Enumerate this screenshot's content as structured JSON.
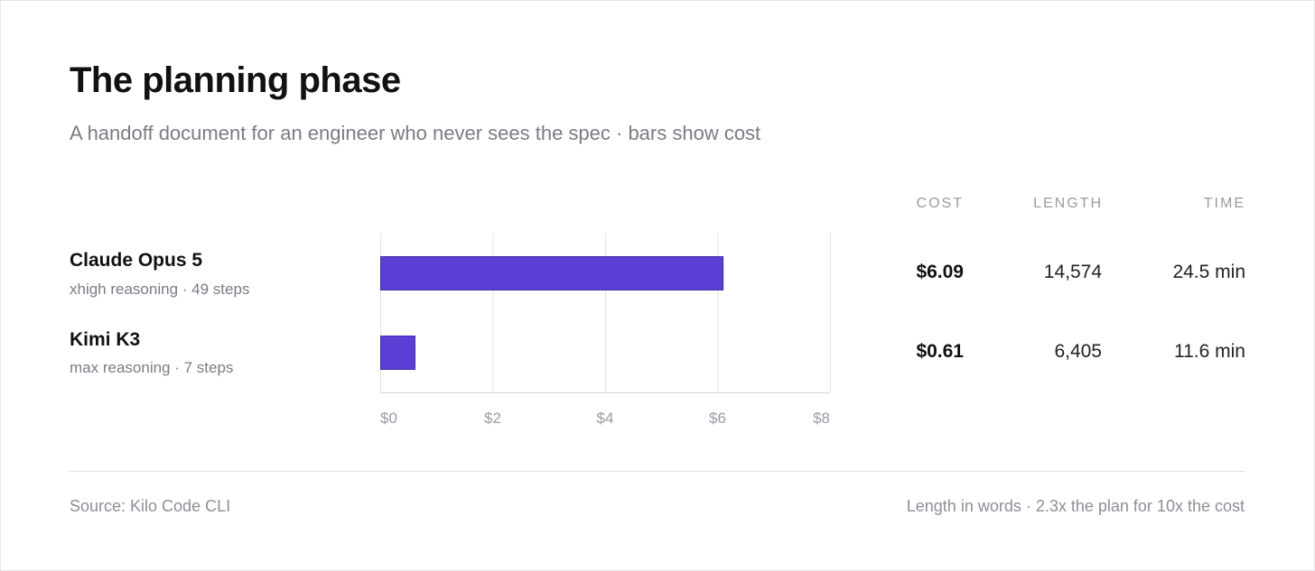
{
  "header": {
    "title": "The planning phase",
    "subtitle": "A handoff document for an engineer who never sees the spec · bars show cost"
  },
  "table": {
    "columns": [
      "COST",
      "LENGTH",
      "TIME"
    ],
    "rows": [
      {
        "model": "Claude Opus 5",
        "detail": "xhigh reasoning · 49 steps",
        "cost": "$6.09",
        "length": "14,574",
        "time": "24.5 min"
      },
      {
        "model": "Kimi K3",
        "detail": "max reasoning · 7 steps",
        "cost": "$0.61",
        "length": "6,405",
        "time": "11.6 min"
      }
    ]
  },
  "chart_data": {
    "type": "bar",
    "orientation": "horizontal",
    "categories": [
      "Claude Opus 5",
      "Kimi K3"
    ],
    "values": [
      6.09,
      0.61
    ],
    "xlim": [
      0,
      8
    ],
    "x_ticks": [
      0,
      2,
      4,
      6,
      8
    ],
    "x_tick_labels": [
      "$0",
      "$2",
      "$4",
      "$6",
      "$8"
    ],
    "grid": true,
    "bar_color": "#5b3fd4"
  },
  "footer": {
    "source": "Source: Kilo Code CLI",
    "note": "Length in words · 2.3x the plan for 10x the cost"
  },
  "colors": {
    "accent": "#5b3fd4",
    "title": "#111111",
    "muted": "#7b7b86"
  }
}
